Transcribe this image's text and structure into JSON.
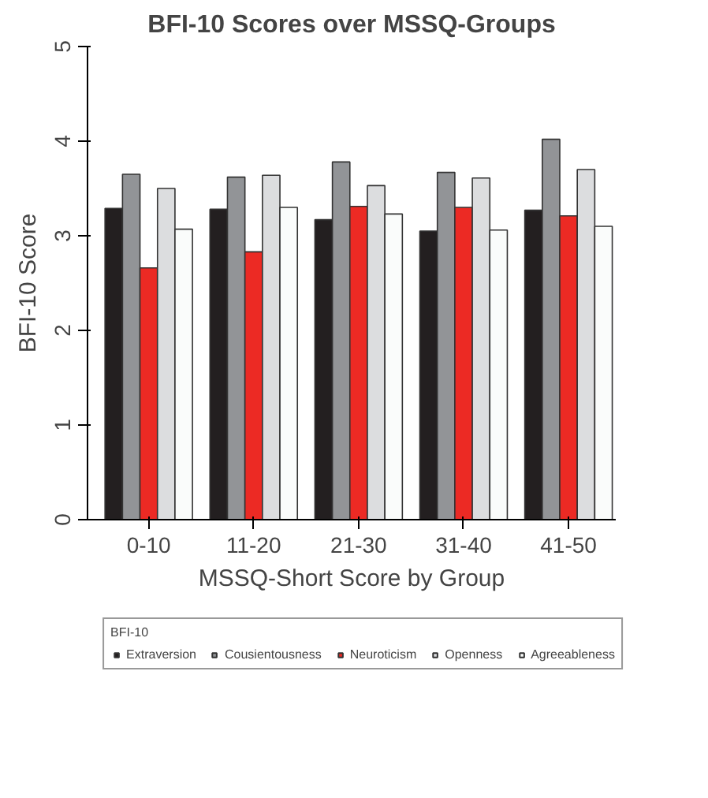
{
  "chart_data": {
    "type": "bar",
    "title": "BFI-10 Scores over MSSQ-Groups",
    "xlabel": "MSSQ-Short Score by Group",
    "ylabel": "BFI-10 Score",
    "legend_title": "BFI-10",
    "categories": [
      "0-10",
      "11-20",
      "21-30",
      "31-40",
      "41-50"
    ],
    "series": [
      {
        "name": "Extraversion",
        "color": "#231f20",
        "values": [
          3.29,
          3.28,
          3.17,
          3.05,
          3.27
        ]
      },
      {
        "name": "Cousientousness",
        "color": "#929497",
        "values": [
          3.65,
          3.62,
          3.78,
          3.67,
          4.02
        ]
      },
      {
        "name": "Neuroticism",
        "color": "#ec2a24",
        "values": [
          2.66,
          2.83,
          3.31,
          3.3,
          3.21
        ]
      },
      {
        "name": "Openness",
        "color": "#dcdddf",
        "values": [
          3.5,
          3.64,
          3.53,
          3.61,
          3.7
        ]
      },
      {
        "name": "Agreeableness",
        "color": "#fafcfb",
        "values": [
          3.07,
          3.3,
          3.23,
          3.06,
          3.1
        ]
      }
    ],
    "ylim": [
      0,
      5
    ],
    "yticks": [
      0,
      1,
      2,
      3,
      4,
      5
    ],
    "grid": false,
    "legend": "bottom"
  }
}
